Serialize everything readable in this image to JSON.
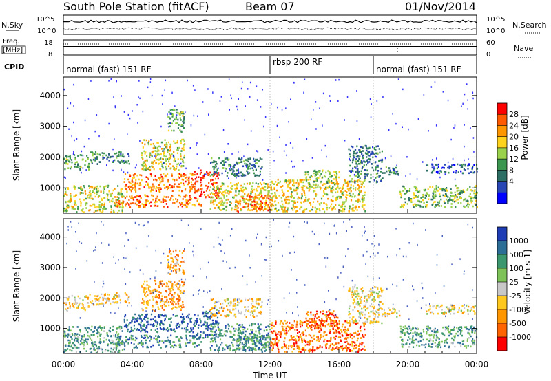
{
  "header": {
    "station": "South Pole Station (fitACF)",
    "beam": "Beam 07",
    "date": "01/Nov/2014"
  },
  "summary_panels": {
    "nsky_label": "N.Sky",
    "nsky_ticks": [
      "10^5",
      "10^0"
    ],
    "nsearch_label": "N.Search",
    "nsearch_ticks": [
      "10^5",
      "10^0"
    ],
    "freq_label_1": "Freq.",
    "freq_label_2": "[MHz]",
    "freq_ticks": [
      "18",
      "8"
    ],
    "nave_label": "Nave",
    "nave_ticks": [
      "60",
      "0"
    ],
    "cpid_label": "CPID",
    "cpid_segments": [
      {
        "label": "normal (fast) 151 RF",
        "start_hour": 0,
        "end_hour": 12
      },
      {
        "label": "rbsp 200 RF",
        "start_hour": 12,
        "end_hour": 18
      },
      {
        "label": "normal (fast) 151 RF",
        "start_hour": 18,
        "end_hour": 24
      }
    ]
  },
  "chart_data": [
    {
      "type": "heatmap",
      "quantity": "power",
      "ylabel": "Slant Range [km]",
      "xlabel": "Time UT",
      "xlim_hours": [
        0,
        24
      ],
      "ylim": [
        180,
        4600
      ],
      "y_ticks": [
        1000,
        2000,
        3000,
        4000
      ],
      "x_tick_labels": [
        "00:00",
        "04:00",
        "08:00",
        "12:00",
        "16:00",
        "20:00",
        "00:00"
      ],
      "colorbar": {
        "label": "Power [dB]",
        "ticks": [
          "28",
          "24",
          "20",
          "16",
          "12",
          "8",
          "4"
        ],
        "colors": [
          "#ff0000",
          "#ff5a00",
          "#ff9600",
          "#ffd21e",
          "#9bd24b",
          "#3c9650",
          "#2d6e64",
          "#2846b4",
          "#0000ff"
        ]
      },
      "echo_regions": [
        {
          "t0": 0.0,
          "t1": 3.5,
          "r0": 220,
          "r1": 1100,
          "level": 0.55
        },
        {
          "t0": 0.0,
          "t1": 1.5,
          "r0": 1600,
          "r1": 2100,
          "level": 0.4
        },
        {
          "t0": 1.5,
          "t1": 3.8,
          "r0": 1800,
          "r1": 2200,
          "level": 0.3
        },
        {
          "t0": 3.0,
          "t1": 8.0,
          "r0": 400,
          "r1": 800,
          "level": 0.8
        },
        {
          "t0": 3.5,
          "t1": 7.5,
          "r0": 900,
          "r1": 1500,
          "level": 0.75
        },
        {
          "t0": 4.5,
          "t1": 7.0,
          "r0": 1600,
          "r1": 2600,
          "level": 0.55
        },
        {
          "t0": 6.0,
          "t1": 7.0,
          "r0": 2800,
          "r1": 3600,
          "level": 0.4
        },
        {
          "t0": 7.5,
          "t1": 9.0,
          "r0": 700,
          "r1": 1600,
          "level": 0.9
        },
        {
          "t0": 8.5,
          "t1": 12.0,
          "r0": 300,
          "r1": 1200,
          "level": 0.6
        },
        {
          "t0": 8.5,
          "t1": 11.5,
          "r0": 1400,
          "r1": 2000,
          "level": 0.3
        },
        {
          "t0": 10.0,
          "t1": 12.0,
          "r0": 250,
          "r1": 800,
          "level": 0.8
        },
        {
          "t0": 12.0,
          "t1": 17.5,
          "r0": 250,
          "r1": 1300,
          "level": 0.6
        },
        {
          "t0": 14.0,
          "t1": 16.0,
          "r0": 1000,
          "r1": 1600,
          "level": 0.5
        },
        {
          "t0": 16.5,
          "t1": 18.5,
          "r0": 1200,
          "r1": 2400,
          "level": 0.3
        },
        {
          "t0": 18.5,
          "t1": 19.5,
          "r0": 1400,
          "r1": 1700,
          "level": 0.3
        },
        {
          "t0": 19.5,
          "t1": 24.0,
          "r0": 400,
          "r1": 1100,
          "level": 0.45
        },
        {
          "t0": 21.0,
          "t1": 24.0,
          "r0": 1500,
          "r1": 1800,
          "level": 0.2
        }
      ]
    },
    {
      "type": "heatmap",
      "quantity": "velocity",
      "ylabel": "Slant Range [km]",
      "xlabel": "Time UT",
      "xlim_hours": [
        0,
        24
      ],
      "ylim": [
        180,
        4600
      ],
      "y_ticks": [
        1000,
        2000,
        3000,
        4000
      ],
      "x_tick_labels": [
        "00:00",
        "04:00",
        "08:00",
        "12:00",
        "16:00",
        "20:00",
        "00:00"
      ],
      "colorbar": {
        "label": "Velocity [m s-1]",
        "ticks": [
          "1000",
          "500",
          "100",
          "25",
          "-25",
          "-100",
          "-500",
          "-1000"
        ],
        "colors": [
          "#1e3cb4",
          "#2d6e96",
          "#3c966e",
          "#7dc35a",
          "#c8c8c8",
          "#ffc81e",
          "#ff9600",
          "#ff6400",
          "#ff0000"
        ]
      },
      "echo_regions": [
        {
          "t0": 0.0,
          "t1": 3.5,
          "r0": 220,
          "r1": 1100,
          "level": 0.7
        },
        {
          "t0": 0.0,
          "t1": 1.5,
          "r0": 1600,
          "r1": 2100,
          "level": 0.4
        },
        {
          "t0": 1.5,
          "t1": 3.8,
          "r0": 1800,
          "r1": 2200,
          "level": 0.4
        },
        {
          "t0": 3.0,
          "t1": 8.0,
          "r0": 400,
          "r1": 800,
          "level": 0.75
        },
        {
          "t0": 3.5,
          "t1": 7.5,
          "r0": 900,
          "r1": 1500,
          "level": 0.85
        },
        {
          "t0": 4.5,
          "t1": 7.0,
          "r0": 1600,
          "r1": 2600,
          "level": 0.3
        },
        {
          "t0": 6.0,
          "t1": 7.0,
          "r0": 2800,
          "r1": 3600,
          "level": 0.3
        },
        {
          "t0": 7.5,
          "t1": 9.0,
          "r0": 700,
          "r1": 1600,
          "level": 0.9
        },
        {
          "t0": 8.5,
          "t1": 12.0,
          "r0": 300,
          "r1": 1200,
          "level": 0.75
        },
        {
          "t0": 8.5,
          "t1": 11.5,
          "r0": 1400,
          "r1": 2000,
          "level": 0.4
        },
        {
          "t0": 10.0,
          "t1": 12.0,
          "r0": 250,
          "r1": 800,
          "level": 0.7
        },
        {
          "t0": 12.0,
          "t1": 17.5,
          "r0": 250,
          "r1": 1300,
          "level": 0.2
        },
        {
          "t0": 14.0,
          "t1": 16.0,
          "r0": 1000,
          "r1": 1600,
          "level": 0.2
        },
        {
          "t0": 16.5,
          "t1": 18.5,
          "r0": 1200,
          "r1": 2400,
          "level": 0.45
        },
        {
          "t0": 18.5,
          "t1": 19.5,
          "r0": 1400,
          "r1": 1700,
          "level": 0.45
        },
        {
          "t0": 19.5,
          "t1": 24.0,
          "r0": 400,
          "r1": 1100,
          "level": 0.7
        },
        {
          "t0": 21.0,
          "t1": 24.0,
          "r0": 1500,
          "r1": 1800,
          "level": 0.45
        }
      ]
    }
  ]
}
